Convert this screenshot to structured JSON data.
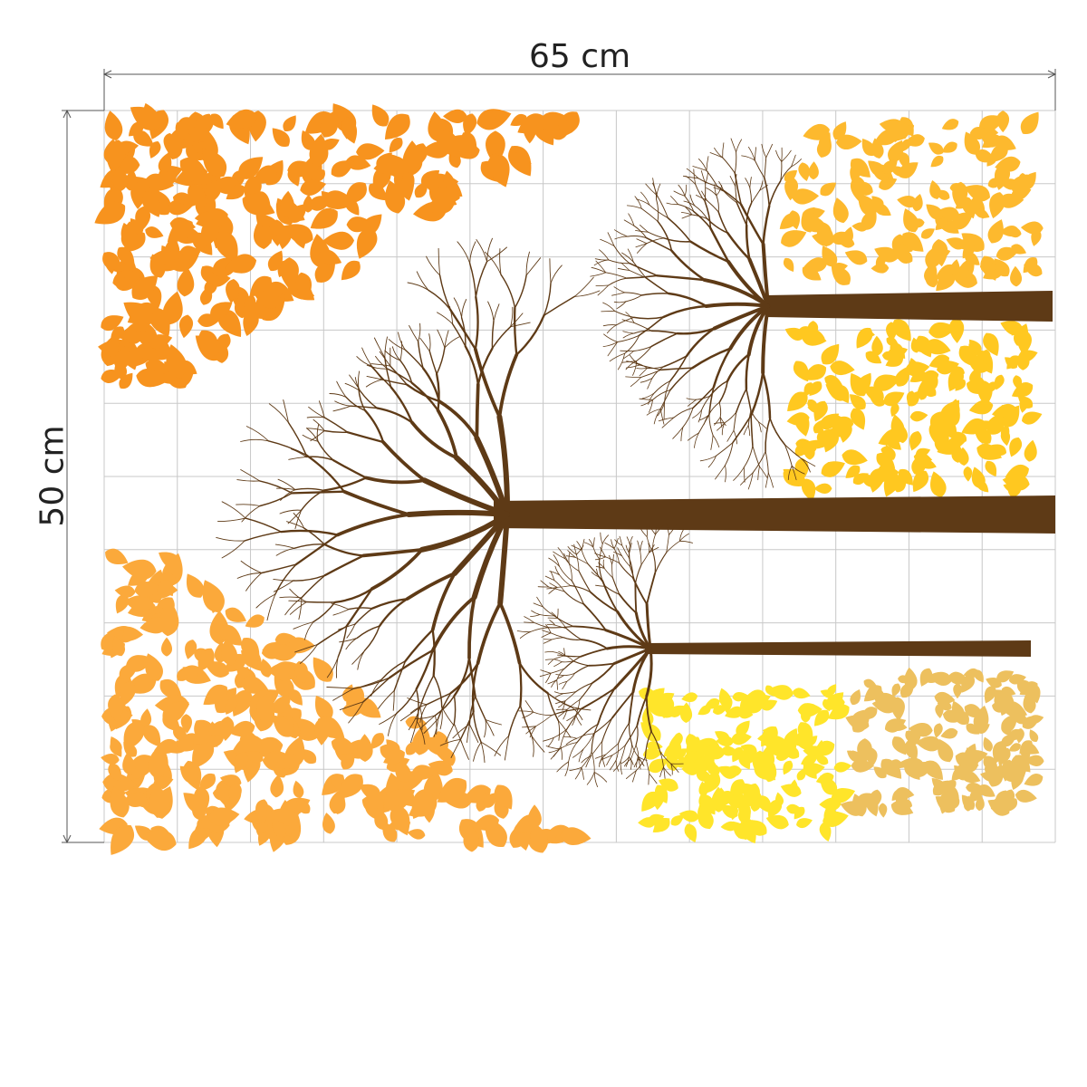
{
  "dimensions": {
    "width_label": "65 cm",
    "height_label": "50 cm",
    "grid_columns": 13,
    "grid_rows": 10
  },
  "colors": {
    "branch": "#5E3A16",
    "grid": "#C8C8C8",
    "dimension_line": "#555555",
    "leaf_orange": "#F7931E",
    "leaf_light_orange": "#FBA93B",
    "leaf_gold": "#FDB92E",
    "leaf_yellow": "#FFC820",
    "leaf_bright_yellow": "#FFE52A",
    "leaf_tan": "#EDC05E"
  }
}
